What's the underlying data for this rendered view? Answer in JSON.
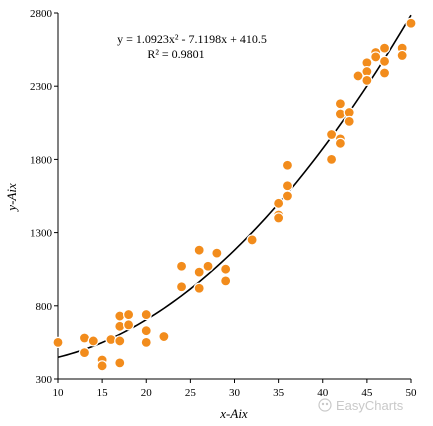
{
  "chart_data": {
    "type": "scatter",
    "xlabel": "x-Aix",
    "ylabel": "y-Aix",
    "xlim": [
      10,
      50
    ],
    "ylim": [
      300,
      2800
    ],
    "xticks": [
      "10",
      "15",
      "20",
      "25",
      "30",
      "35",
      "40",
      "45",
      "50"
    ],
    "yticks": [
      "300",
      "800",
      "1300",
      "1800",
      "2300",
      "2800"
    ],
    "grid": false,
    "point_color": "#F28C1C",
    "trend_color": "#000000",
    "trendline": {
      "type": "polynomial",
      "coefficients": [
        1.0923,
        -7.1198,
        410.5
      ],
      "equation": "y = 1.0923x² - 7.1198x + 410.5",
      "r_squared": "R² = 0.9801"
    },
    "points": [
      {
        "x": 10,
        "y": 550
      },
      {
        "x": 13,
        "y": 580
      },
      {
        "x": 13,
        "y": 480
      },
      {
        "x": 14,
        "y": 560
      },
      {
        "x": 15,
        "y": 430
      },
      {
        "x": 15,
        "y": 390
      },
      {
        "x": 16,
        "y": 570
      },
      {
        "x": 17,
        "y": 730
      },
      {
        "x": 17,
        "y": 660
      },
      {
        "x": 17,
        "y": 560
      },
      {
        "x": 17,
        "y": 410
      },
      {
        "x": 18,
        "y": 740
      },
      {
        "x": 18,
        "y": 670
      },
      {
        "x": 20,
        "y": 740
      },
      {
        "x": 20,
        "y": 630
      },
      {
        "x": 20,
        "y": 550
      },
      {
        "x": 22,
        "y": 590
      },
      {
        "x": 24,
        "y": 1070
      },
      {
        "x": 24,
        "y": 930
      },
      {
        "x": 26,
        "y": 1180
      },
      {
        "x": 26,
        "y": 1030
      },
      {
        "x": 26,
        "y": 920
      },
      {
        "x": 27,
        "y": 1070
      },
      {
        "x": 28,
        "y": 1160
      },
      {
        "x": 29,
        "y": 1050
      },
      {
        "x": 29,
        "y": 970
      },
      {
        "x": 32,
        "y": 1250
      },
      {
        "x": 35,
        "y": 1500
      },
      {
        "x": 35,
        "y": 1420
      },
      {
        "x": 35,
        "y": 1400
      },
      {
        "x": 36,
        "y": 1760
      },
      {
        "x": 36,
        "y": 1620
      },
      {
        "x": 36,
        "y": 1550
      },
      {
        "x": 41,
        "y": 1970
      },
      {
        "x": 41,
        "y": 1800
      },
      {
        "x": 42,
        "y": 2180
      },
      {
        "x": 42,
        "y": 2110
      },
      {
        "x": 42,
        "y": 1940
      },
      {
        "x": 42,
        "y": 1910
      },
      {
        "x": 43,
        "y": 2120
      },
      {
        "x": 43,
        "y": 2060
      },
      {
        "x": 44,
        "y": 2370
      },
      {
        "x": 45,
        "y": 2460
      },
      {
        "x": 45,
        "y": 2400
      },
      {
        "x": 45,
        "y": 2340
      },
      {
        "x": 46,
        "y": 2530
      },
      {
        "x": 46,
        "y": 2500
      },
      {
        "x": 47,
        "y": 2560
      },
      {
        "x": 47,
        "y": 2470
      },
      {
        "x": 47,
        "y": 2390
      },
      {
        "x": 49,
        "y": 2560
      },
      {
        "x": 49,
        "y": 2510
      },
      {
        "x": 50,
        "y": 2730
      }
    ]
  },
  "watermark": {
    "text": "EasyCharts",
    "icon": "easycharts-logo-icon"
  }
}
